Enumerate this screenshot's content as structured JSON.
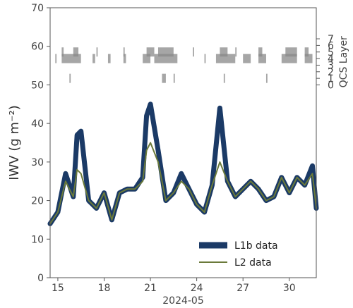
{
  "chart_data": {
    "type": "line",
    "ylabel": "IWV (g m⁻²)",
    "xlabel": "2024-05",
    "right_ylabel": "QCS Layer",
    "ylim": [
      0,
      70
    ],
    "yticks": [
      0,
      10,
      20,
      30,
      40,
      50,
      60,
      70
    ],
    "xlim": [
      "2024-05-14T12:00",
      "2024-05-31T18:00"
    ],
    "xticks": [
      {
        "date": "2024-05-15",
        "label": "15"
      },
      {
        "date": "2024-05-18",
        "label": "18"
      },
      {
        "date": "2024-05-21",
        "label": "21"
      },
      {
        "date": "2024-05-24",
        "label": "24"
      },
      {
        "date": "2024-05-27",
        "label": "27"
      },
      {
        "date": "2024-05-30",
        "label": "30"
      }
    ],
    "qcs_ticks": [
      "0",
      "1",
      "2",
      "3",
      "4",
      "5",
      "6",
      "7"
    ],
    "legend_position": "lower-right",
    "series": [
      {
        "name": "L1b data",
        "color": "#1b3a66",
        "x": [
          "2024-05-14T12:00",
          "2024-05-15T00:00",
          "2024-05-15T12:00",
          "2024-05-16T00:00",
          "2024-05-16T06:00",
          "2024-05-16T12:00",
          "2024-05-17T00:00",
          "2024-05-17T12:00",
          "2024-05-18T00:00",
          "2024-05-18T12:00",
          "2024-05-19T00:00",
          "2024-05-19T12:00",
          "2024-05-20T00:00",
          "2024-05-20T12:00",
          "2024-05-20T18:00",
          "2024-05-21T00:00",
          "2024-05-21T12:00",
          "2024-05-22T00:00",
          "2024-05-22T12:00",
          "2024-05-23T00:00",
          "2024-05-23T12:00",
          "2024-05-24T00:00",
          "2024-05-24T12:00",
          "2024-05-25T00:00",
          "2024-05-25T12:00",
          "2024-05-26T00:00",
          "2024-05-26T12:00",
          "2024-05-27T00:00",
          "2024-05-27T12:00",
          "2024-05-28T00:00",
          "2024-05-28T12:00",
          "2024-05-29T00:00",
          "2024-05-29T12:00",
          "2024-05-30T00:00",
          "2024-05-30T12:00",
          "2024-05-31T00:00",
          "2024-05-31T12:00",
          "2024-05-31T18:00"
        ],
        "y": [
          14,
          17,
          27,
          21,
          37,
          38,
          20,
          18,
          22,
          15,
          22,
          23,
          23,
          26,
          42,
          45,
          33,
          20,
          22,
          27,
          23,
          19,
          17,
          24,
          44,
          25,
          21,
          23,
          25,
          23,
          20,
          21,
          26,
          22,
          26,
          24,
          29,
          18
        ]
      },
      {
        "name": "L2 data",
        "color": "#6b7a3a",
        "x": [
          "2024-05-14T12:00",
          "2024-05-15T00:00",
          "2024-05-15T12:00",
          "2024-05-16T00:00",
          "2024-05-16T06:00",
          "2024-05-16T12:00",
          "2024-05-17T00:00",
          "2024-05-17T12:00",
          "2024-05-18T00:00",
          "2024-05-18T12:00",
          "2024-05-19T00:00",
          "2024-05-19T12:00",
          "2024-05-20T00:00",
          "2024-05-20T12:00",
          "2024-05-20T18:00",
          "2024-05-21T00:00",
          "2024-05-21T12:00",
          "2024-05-22T00:00",
          "2024-05-22T12:00",
          "2024-05-23T00:00",
          "2024-05-23T12:00",
          "2024-05-24T00:00",
          "2024-05-24T12:00",
          "2024-05-25T00:00",
          "2024-05-25T12:00",
          "2024-05-26T00:00",
          "2024-05-26T12:00",
          "2024-05-27T00:00",
          "2024-05-27T12:00",
          "2024-05-28T00:00",
          "2024-05-28T12:00",
          "2024-05-29T00:00",
          "2024-05-29T12:00",
          "2024-05-30T00:00",
          "2024-05-30T12:00",
          "2024-05-31T00:00",
          "2024-05-31T12:00",
          "2024-05-31T18:00"
        ],
        "y": [
          14,
          17,
          25,
          21,
          28,
          27,
          20,
          18,
          22,
          15,
          22,
          23,
          23,
          25,
          33,
          35,
          30,
          20,
          22,
          25,
          23,
          19,
          17,
          24,
          30,
          25,
          21,
          23,
          25,
          23,
          20,
          21,
          26,
          22,
          26,
          24,
          27,
          18
        ]
      }
    ],
    "qcs_flags": [
      {
        "layer": 5,
        "intervals": [
          [
            "2024-05-15T06:00",
            "2024-05-15T09:00"
          ],
          [
            "2024-05-16T00:00",
            "2024-05-16T08:00"
          ],
          [
            "2024-05-17T12:00",
            "2024-05-17T14:00"
          ],
          [
            "2024-05-19T06:00",
            "2024-05-19T08:00"
          ],
          [
            "2024-05-20T18:00",
            "2024-05-21T06:00"
          ],
          [
            "2024-05-21T12:00",
            "2024-05-22T12:00"
          ],
          [
            "2024-05-23T18:00",
            "2024-05-23T20:00"
          ],
          [
            "2024-05-25T12:00",
            "2024-05-26T00:00"
          ],
          [
            "2024-05-26T12:00",
            "2024-05-26T14:00"
          ],
          [
            "2024-05-28T00:00",
            "2024-05-28T06:00"
          ],
          [
            "2024-05-29T18:00",
            "2024-05-30T12:00"
          ],
          [
            "2024-05-31T00:00",
            "2024-05-31T06:00"
          ]
        ]
      },
      {
        "layer": 4,
        "intervals": [
          [
            "2024-05-14T20:00",
            "2024-05-14T22:00"
          ],
          [
            "2024-05-15T06:00",
            "2024-05-16T12:00"
          ],
          [
            "2024-05-17T06:00",
            "2024-05-17T10:00"
          ],
          [
            "2024-05-18T06:00",
            "2024-05-18T10:00"
          ],
          [
            "2024-05-19T06:00",
            "2024-05-19T10:00"
          ],
          [
            "2024-05-20T12:00",
            "2024-05-21T00:00"
          ],
          [
            "2024-05-21T06:00",
            "2024-05-22T18:00"
          ],
          [
            "2024-05-24T12:00",
            "2024-05-24T14:00"
          ],
          [
            "2024-05-25T06:00",
            "2024-05-26T12:00"
          ],
          [
            "2024-05-27T00:00",
            "2024-05-27T12:00"
          ],
          [
            "2024-05-28T00:00",
            "2024-05-28T12:00"
          ],
          [
            "2024-05-29T12:00",
            "2024-05-30T12:00"
          ],
          [
            "2024-05-31T00:00",
            "2024-05-31T12:00"
          ]
        ]
      },
      {
        "layer": 1,
        "intervals": [
          [
            "2024-05-15T18:00",
            "2024-05-15T20:00"
          ],
          [
            "2024-05-21T18:00",
            "2024-05-22T00:00"
          ],
          [
            "2024-05-22T12:00",
            "2024-05-22T14:00"
          ],
          [
            "2024-05-25T18:00",
            "2024-05-25T20:00"
          ],
          [
            "2024-05-28T12:00",
            "2024-05-28T14:00"
          ]
        ]
      }
    ]
  }
}
